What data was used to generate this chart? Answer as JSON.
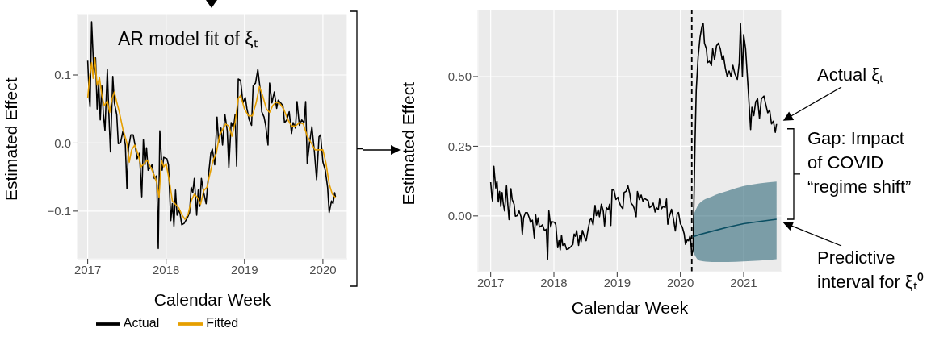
{
  "chart_data": [
    {
      "type": "line",
      "xlabel": "Calendar Week",
      "ylabel": "Estimated Effect",
      "annotations": [
        "AR model fit of ξₜ"
      ],
      "xlim": [
        2016.87,
        2020.31
      ],
      "xticks": [
        2017,
        2018,
        2019,
        2020
      ],
      "ylim": [
        -0.17,
        0.19
      ],
      "yticks": [
        {
          "value": -0.1,
          "label": "−0.1"
        },
        {
          "value": 0,
          "label": "0.0"
        },
        0.1
      ],
      "grid": true,
      "legend": "bottom",
      "series": [
        {
          "name": "Actual",
          "color": "#000000",
          "x": [
            2017.0,
            2017.02,
            2017.03,
            2017.05,
            2017.08,
            2017.1,
            2017.12,
            2017.14,
            2017.16,
            2017.18,
            2017.2,
            2017.22,
            2017.25,
            2017.27,
            2017.29,
            2017.32,
            2017.34,
            2017.37,
            2017.39,
            2017.42,
            2017.45,
            2017.48,
            2017.5,
            2017.52,
            2017.55,
            2017.58,
            2017.61,
            2017.63,
            2017.66,
            2017.69,
            2017.71,
            2017.73,
            2017.75,
            2017.77,
            2017.8,
            2017.82,
            2017.85,
            2017.88,
            2017.9,
            2017.92,
            2017.95,
            2017.97,
            2018.01,
            2018.03,
            2018.06,
            2018.08,
            2018.1,
            2018.12,
            2018.14,
            2018.17,
            2018.2,
            2018.23,
            2018.27,
            2018.3,
            2018.32,
            2018.34,
            2018.36,
            2018.39,
            2018.41,
            2018.43,
            2018.45,
            2018.48,
            2018.51,
            2018.54,
            2018.57,
            2018.59,
            2018.62,
            2018.65,
            2018.67,
            2018.7,
            2018.72,
            2018.75,
            2018.78,
            2018.8,
            2018.83,
            2018.86,
            2018.88,
            2018.9,
            2018.92,
            2018.95,
            2018.98,
            2019.01,
            2019.03,
            2019.06,
            2019.09,
            2019.11,
            2019.14,
            2019.17,
            2019.2,
            2019.22,
            2019.25,
            2019.27,
            2019.3,
            2019.32,
            2019.35,
            2019.38,
            2019.41,
            2019.43,
            2019.46,
            2019.49,
            2019.51,
            2019.54,
            2019.57,
            2019.6,
            2019.62,
            2019.65,
            2019.67,
            2019.7,
            2019.73,
            2019.76,
            2019.78,
            2019.8,
            2019.83,
            2019.86,
            2019.89,
            2019.92,
            2019.95,
            2019.97,
            2020.0,
            2020.03,
            2020.06,
            2020.08,
            2020.11,
            2020.13,
            2020.15,
            2020.16
          ],
          "values": [
            0.121,
            0.065,
            0.053,
            0.178,
            0.1,
            0.125,
            0.05,
            0.088,
            0.034,
            0.084,
            0.042,
            0.018,
            0.108,
            0.042,
            -0.013,
            0.098,
            0.059,
            0.042,
            -0.001,
            0.001,
            0.018,
            -0.003,
            -0.067,
            -0.007,
            0.012,
            0.012,
            -0.007,
            -0.023,
            -0.015,
            -0.079,
            0.005,
            -0.032,
            -0.007,
            -0.04,
            -0.036,
            -0.032,
            -0.052,
            -0.048,
            -0.155,
            0.018,
            -0.04,
            -0.021,
            -0.023,
            -0.032,
            -0.114,
            -0.089,
            -0.122,
            -0.069,
            -0.106,
            -0.098,
            -0.12,
            -0.118,
            -0.11,
            -0.102,
            -0.065,
            -0.073,
            -0.052,
            -0.106,
            -0.069,
            -0.093,
            -0.052,
            -0.073,
            -0.089,
            -0.048,
            -0.015,
            -0.009,
            -0.032,
            0.038,
            0.001,
            0.022,
            -0.003,
            0.042,
            0.018,
            -0.036,
            0.03,
            0.022,
            0.042,
            -0.034,
            0.094,
            0.092,
            0.059,
            0.067,
            0.051,
            0.034,
            0.026,
            0.084,
            0.088,
            0.108,
            0.079,
            0.046,
            0.038,
            0.026,
            -0.003,
            0.088,
            0.059,
            0.075,
            0.051,
            0.063,
            0.059,
            0.055,
            0.03,
            0.034,
            0.046,
            0.014,
            0.03,
            0.022,
            0.061,
            0.026,
            0.034,
            0.03,
            0.061,
            -0.03,
            0.001,
            0.024,
            -0.011,
            -0.054,
            0.009,
            0.012,
            -0.028,
            -0.04,
            -0.065,
            -0.102,
            -0.085,
            -0.089,
            -0.073,
            -0.079
          ]
        },
        {
          "name": "Fitted",
          "color": "#e69f00",
          "x": [
            2017.0,
            2017.02,
            2017.05,
            2017.07,
            2017.09,
            2017.12,
            2017.15,
            2017.18,
            2017.21,
            2017.25,
            2017.28,
            2017.31,
            2017.34,
            2017.37,
            2017.4,
            2017.45,
            2017.5,
            2017.53,
            2017.56,
            2017.6,
            2017.64,
            2017.68,
            2017.72,
            2017.76,
            2017.8,
            2017.84,
            2017.88,
            2017.91,
            2017.94,
            2017.97,
            2018.0,
            2018.04,
            2018.08,
            2018.12,
            2018.16,
            2018.2,
            2018.24,
            2018.28,
            2018.32,
            2018.36,
            2018.4,
            2018.44,
            2018.48,
            2018.52,
            2018.56,
            2018.6,
            2018.64,
            2018.68,
            2018.72,
            2018.76,
            2018.8,
            2018.84,
            2018.88,
            2018.92,
            2018.95,
            2019.0,
            2019.05,
            2019.1,
            2019.15,
            2019.19,
            2019.23,
            2019.28,
            2019.32,
            2019.36,
            2019.4,
            2019.45,
            2019.5,
            2019.55,
            2019.6,
            2019.65,
            2019.7,
            2019.75,
            2019.8,
            2019.85,
            2019.9,
            2019.95,
            2020.0,
            2020.04,
            2020.08,
            2020.12,
            2020.16
          ],
          "values": [
            0.066,
            0.093,
            0.118,
            0.095,
            0.125,
            0.085,
            0.096,
            0.07,
            0.055,
            0.062,
            0.045,
            0.065,
            0.075,
            0.06,
            0.047,
            0.02,
            0.0,
            -0.028,
            -0.01,
            -0.003,
            -0.015,
            -0.035,
            -0.03,
            -0.025,
            -0.035,
            -0.045,
            -0.058,
            -0.08,
            -0.025,
            -0.035,
            -0.03,
            -0.055,
            -0.085,
            -0.09,
            -0.095,
            -0.105,
            -0.112,
            -0.105,
            -0.085,
            -0.075,
            -0.08,
            -0.09,
            -0.07,
            -0.065,
            -0.045,
            -0.025,
            -0.015,
            0.01,
            0.02,
            0.028,
            0.025,
            0.01,
            0.03,
            0.065,
            0.07,
            0.05,
            0.04,
            0.04,
            0.06,
            0.083,
            0.07,
            0.05,
            0.045,
            0.055,
            0.06,
            0.058,
            0.05,
            0.035,
            0.025,
            0.025,
            0.03,
            0.028,
            0.01,
            0.0,
            -0.01,
            -0.01,
            -0.01,
            -0.03,
            -0.06,
            -0.075,
            -0.08
          ]
        }
      ]
    },
    {
      "type": "line",
      "xlabel": "Calendar Week",
      "ylabel": "Estimated Effect",
      "annotations": [
        "Actual ξₜ",
        "Gap: Impact of COVID “regime shift”",
        {
          "text": "Predictive interval for ξₜ⁰",
          "x": 2021.52,
          "y": -0.012
        }
      ],
      "xlim": [
        2016.8,
        2021.6
      ],
      "xticks": [
        2017,
        2018,
        2019,
        2020,
        2021
      ],
      "ylim": [
        -0.2,
        0.74
      ],
      "yticks": [
        {
          "value": 0,
          "label": "0.00"
        },
        0.25,
        {
          "value": 0.5,
          "label": "0.50"
        }
      ],
      "grid": true,
      "ref_lines": [
        {
          "axis": "x",
          "value": 2020.18,
          "color": "#000000",
          "line_style": "dashed"
        }
      ],
      "series": [
        {
          "color": "#000000",
          "x": [
            2017.0,
            2017.02,
            2017.03,
            2017.05,
            2017.08,
            2017.1,
            2017.12,
            2017.14,
            2017.16,
            2017.18,
            2017.2,
            2017.22,
            2017.25,
            2017.27,
            2017.29,
            2017.32,
            2017.34,
            2017.37,
            2017.39,
            2017.42,
            2017.45,
            2017.48,
            2017.5,
            2017.52,
            2017.55,
            2017.58,
            2017.61,
            2017.63,
            2017.66,
            2017.69,
            2017.71,
            2017.73,
            2017.75,
            2017.77,
            2017.8,
            2017.82,
            2017.85,
            2017.88,
            2017.9,
            2017.92,
            2017.95,
            2017.97,
            2018.01,
            2018.03,
            2018.06,
            2018.08,
            2018.1,
            2018.12,
            2018.14,
            2018.17,
            2018.2,
            2018.23,
            2018.27,
            2018.3,
            2018.32,
            2018.34,
            2018.36,
            2018.39,
            2018.41,
            2018.43,
            2018.45,
            2018.48,
            2018.51,
            2018.54,
            2018.57,
            2018.59,
            2018.62,
            2018.65,
            2018.67,
            2018.7,
            2018.72,
            2018.75,
            2018.78,
            2018.8,
            2018.83,
            2018.86,
            2018.88,
            2018.9,
            2018.92,
            2018.95,
            2018.98,
            2019.01,
            2019.03,
            2019.06,
            2019.09,
            2019.11,
            2019.14,
            2019.17,
            2019.2,
            2019.22,
            2019.25,
            2019.27,
            2019.3,
            2019.32,
            2019.35,
            2019.38,
            2019.41,
            2019.43,
            2019.46,
            2019.49,
            2019.51,
            2019.54,
            2019.57,
            2019.6,
            2019.62,
            2019.65,
            2019.67,
            2019.7,
            2019.73,
            2019.76,
            2019.78,
            2019.8,
            2019.83,
            2019.86,
            2019.89,
            2019.92,
            2019.95,
            2019.97,
            2020.0,
            2020.03,
            2020.06,
            2020.08,
            2020.11,
            2020.13,
            2020.15,
            2020.16,
            2020.18,
            2020.2,
            2020.23,
            2020.25,
            2020.28,
            2020.31,
            2020.34,
            2020.36,
            2020.38,
            2020.41,
            2020.43,
            2020.46,
            2020.49,
            2020.51,
            2020.54,
            2020.57,
            2020.6,
            2020.63,
            2020.66,
            2020.68,
            2020.71,
            2020.74,
            2020.77,
            2020.8,
            2020.83,
            2020.86,
            2020.9,
            2020.93,
            2020.95,
            2020.98,
            2021.0,
            2021.03,
            2021.07,
            2021.11,
            2021.13,
            2021.16,
            2021.19,
            2021.22,
            2021.25,
            2021.28,
            2021.32,
            2021.35,
            2021.38,
            2021.41,
            2021.44,
            2021.47,
            2021.5,
            2021.52
          ],
          "values": [
            0.121,
            0.065,
            0.053,
            0.178,
            0.1,
            0.125,
            0.05,
            0.088,
            0.034,
            0.084,
            0.042,
            0.018,
            0.108,
            0.042,
            -0.013,
            0.098,
            0.059,
            0.042,
            -0.001,
            0.001,
            0.018,
            -0.003,
            -0.067,
            -0.007,
            0.012,
            0.012,
            -0.007,
            -0.023,
            -0.015,
            -0.079,
            0.005,
            -0.032,
            -0.007,
            -0.04,
            -0.036,
            -0.032,
            -0.052,
            -0.048,
            -0.155,
            0.018,
            -0.04,
            -0.021,
            -0.023,
            -0.032,
            -0.114,
            -0.089,
            -0.122,
            -0.069,
            -0.106,
            -0.098,
            -0.12,
            -0.118,
            -0.11,
            -0.102,
            -0.065,
            -0.073,
            -0.052,
            -0.106,
            -0.069,
            -0.093,
            -0.052,
            -0.073,
            -0.089,
            -0.048,
            -0.015,
            -0.009,
            -0.032,
            0.038,
            0.001,
            0.022,
            -0.003,
            0.042,
            0.018,
            -0.036,
            0.03,
            0.022,
            0.042,
            -0.034,
            0.094,
            0.092,
            0.059,
            0.067,
            0.051,
            0.034,
            0.026,
            0.084,
            0.088,
            0.108,
            0.079,
            0.046,
            0.038,
            0.026,
            -0.003,
            0.088,
            0.059,
            0.075,
            0.051,
            0.063,
            0.059,
            0.055,
            0.03,
            0.034,
            0.046,
            0.014,
            0.03,
            0.022,
            0.061,
            0.026,
            0.034,
            0.03,
            0.061,
            -0.03,
            0.001,
            0.024,
            -0.011,
            -0.054,
            0.009,
            0.012,
            -0.028,
            -0.04,
            -0.065,
            -0.102,
            -0.085,
            -0.089,
            -0.073,
            -0.079,
            -0.14,
            -0.12,
            0.25,
            0.45,
            0.57,
            0.64,
            0.68,
            0.69,
            0.62,
            0.6,
            0.55,
            0.555,
            0.54,
            0.6,
            0.56,
            0.61,
            0.62,
            0.6,
            0.56,
            0.575,
            0.53,
            0.5,
            0.52,
            0.5,
            0.54,
            0.51,
            0.49,
            0.55,
            0.69,
            0.5,
            0.65,
            0.6,
            0.46,
            0.31,
            0.39,
            0.36,
            0.41,
            0.42,
            0.35,
            0.42,
            0.43,
            0.4,
            0.37,
            0.38,
            0.33,
            0.34,
            0.3,
            0.33
          ]
        },
        {
          "color": "#0b4f63",
          "x": [
            2020.2,
            2020.3,
            2020.5,
            2020.75,
            2021.0,
            2021.25,
            2021.52
          ],
          "values": [
            -0.075,
            -0.067,
            -0.055,
            -0.04,
            -0.028,
            -0.02,
            -0.012
          ],
          "lower": [
            -0.13,
            -0.16,
            -0.165,
            -0.165,
            -0.163,
            -0.16,
            -0.155
          ],
          "upper": [
            0.0,
            0.045,
            0.07,
            0.09,
            0.107,
            0.117,
            0.123
          ]
        }
      ]
    }
  ]
}
